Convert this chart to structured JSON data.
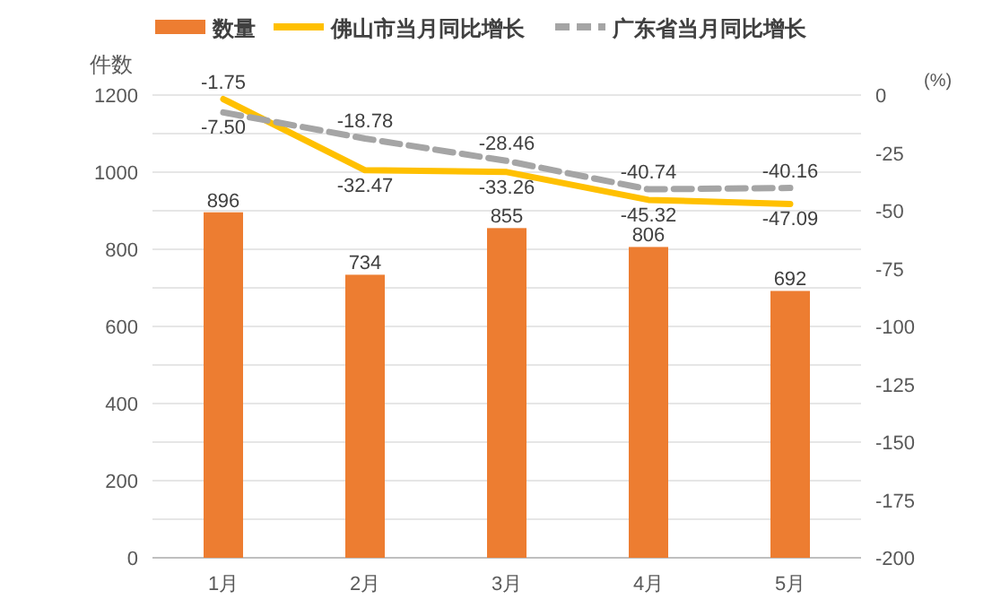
{
  "chart_data": {
    "type": "bar",
    "categories": [
      "1月",
      "2月",
      "3月",
      "4月",
      "5月"
    ],
    "ylabel": "件数",
    "y2label": "(%)",
    "ylim": [
      0,
      1200
    ],
    "yticks": [
      0,
      {
        "value": 100,
        "label": null
      },
      200,
      {
        "value": 300,
        "label": null
      },
      400,
      {
        "value": 500,
        "label": null
      },
      600,
      {
        "value": 700,
        "label": null
      },
      800,
      {
        "value": 900,
        "label": null
      },
      1000,
      {
        "value": 1100,
        "label": null
      },
      1200
    ],
    "y2lim": [
      -200,
      0
    ],
    "y2ticks": [
      -200,
      -175,
      -150,
      -125,
      -100,
      -75,
      -50,
      -25,
      0
    ],
    "grid": "y",
    "legend": "top",
    "data_labels": true,
    "series": [
      {
        "name": "数量",
        "color": "#ed7d31",
        "values": [
          896,
          734,
          855,
          806,
          692
        ]
      },
      {
        "name": "佛山市当月同比增长",
        "type": "line",
        "axis": "y2",
        "color": "#ffc000",
        "line_style": "solid",
        "values": [
          -1.75,
          -32.47,
          -33.26,
          -45.32,
          -47.09
        ],
        "value_labels": [
          "-1.75",
          "-32.47",
          "-33.26",
          "-45.32",
          "-47.09"
        ]
      },
      {
        "name": "广东省当月同比增长",
        "type": "line",
        "axis": "y2",
        "color": "#a5a5a5",
        "line_style": "dashed",
        "values": [
          -7.5,
          -18.78,
          -28.46,
          -40.74,
          -40.16
        ],
        "value_labels": [
          "-7.50",
          "-18.78",
          "-28.46",
          "-40.74",
          "-40.16"
        ]
      }
    ]
  }
}
